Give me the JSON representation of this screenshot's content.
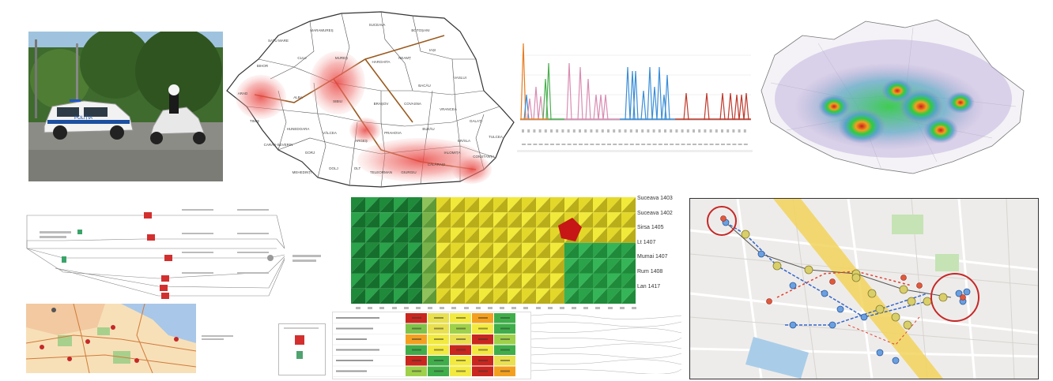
{
  "photo": {
    "car_label": "POLIȚIA"
  },
  "romania_map": {
    "counties": [
      "SATU MARE",
      "MARAMUREȘ",
      "SUCEAVA",
      "BOTOȘANI",
      "BIHOR",
      "CLUJ",
      "MUREȘ",
      "HARGHITA",
      "NEAMȚ",
      "IAȘI",
      "VASLUI",
      "BACĂU",
      "ARAD",
      "ALBA",
      "SIBIU",
      "BRAȘOV",
      "COVASNA",
      "VRANCEA",
      "GALAȚI",
      "TIMIȘ",
      "HUNEDOARA",
      "VÂLCEA",
      "ARGEȘ",
      "PRAHOVA",
      "BUZĂU",
      "BRĂILA",
      "TULCEA",
      "CARAȘ-SEVERIN",
      "GORJ",
      "MEHEDINȚI",
      "DOLJ",
      "OLT",
      "TELEORMAN",
      "GIURGIU",
      "CĂLĂRAȘI",
      "IALOMIȚA",
      "CONSTANȚA"
    ]
  },
  "surface_legend": [
    "Suceava 1403",
    "Suceava 1402",
    "Sirsa 1405",
    "Lt 1407",
    "Mumai 1407",
    "Rum 1408",
    "Lan 1417"
  ],
  "colors": {
    "hot": "#e8433f",
    "spike_orange": "#e67e22",
    "spike_blue": "#3b8ed8",
    "spike_red": "#c0392b",
    "spike_green": "#4caf50",
    "spike_pink": "#d98cb3",
    "heat_green": "#2ecc40",
    "heat_yellow": "#ffd700",
    "heat_red": "#d62020",
    "route_blue": "#3366cc",
    "route_red": "#e04030",
    "road_yellow": "#f2d45c"
  }
}
